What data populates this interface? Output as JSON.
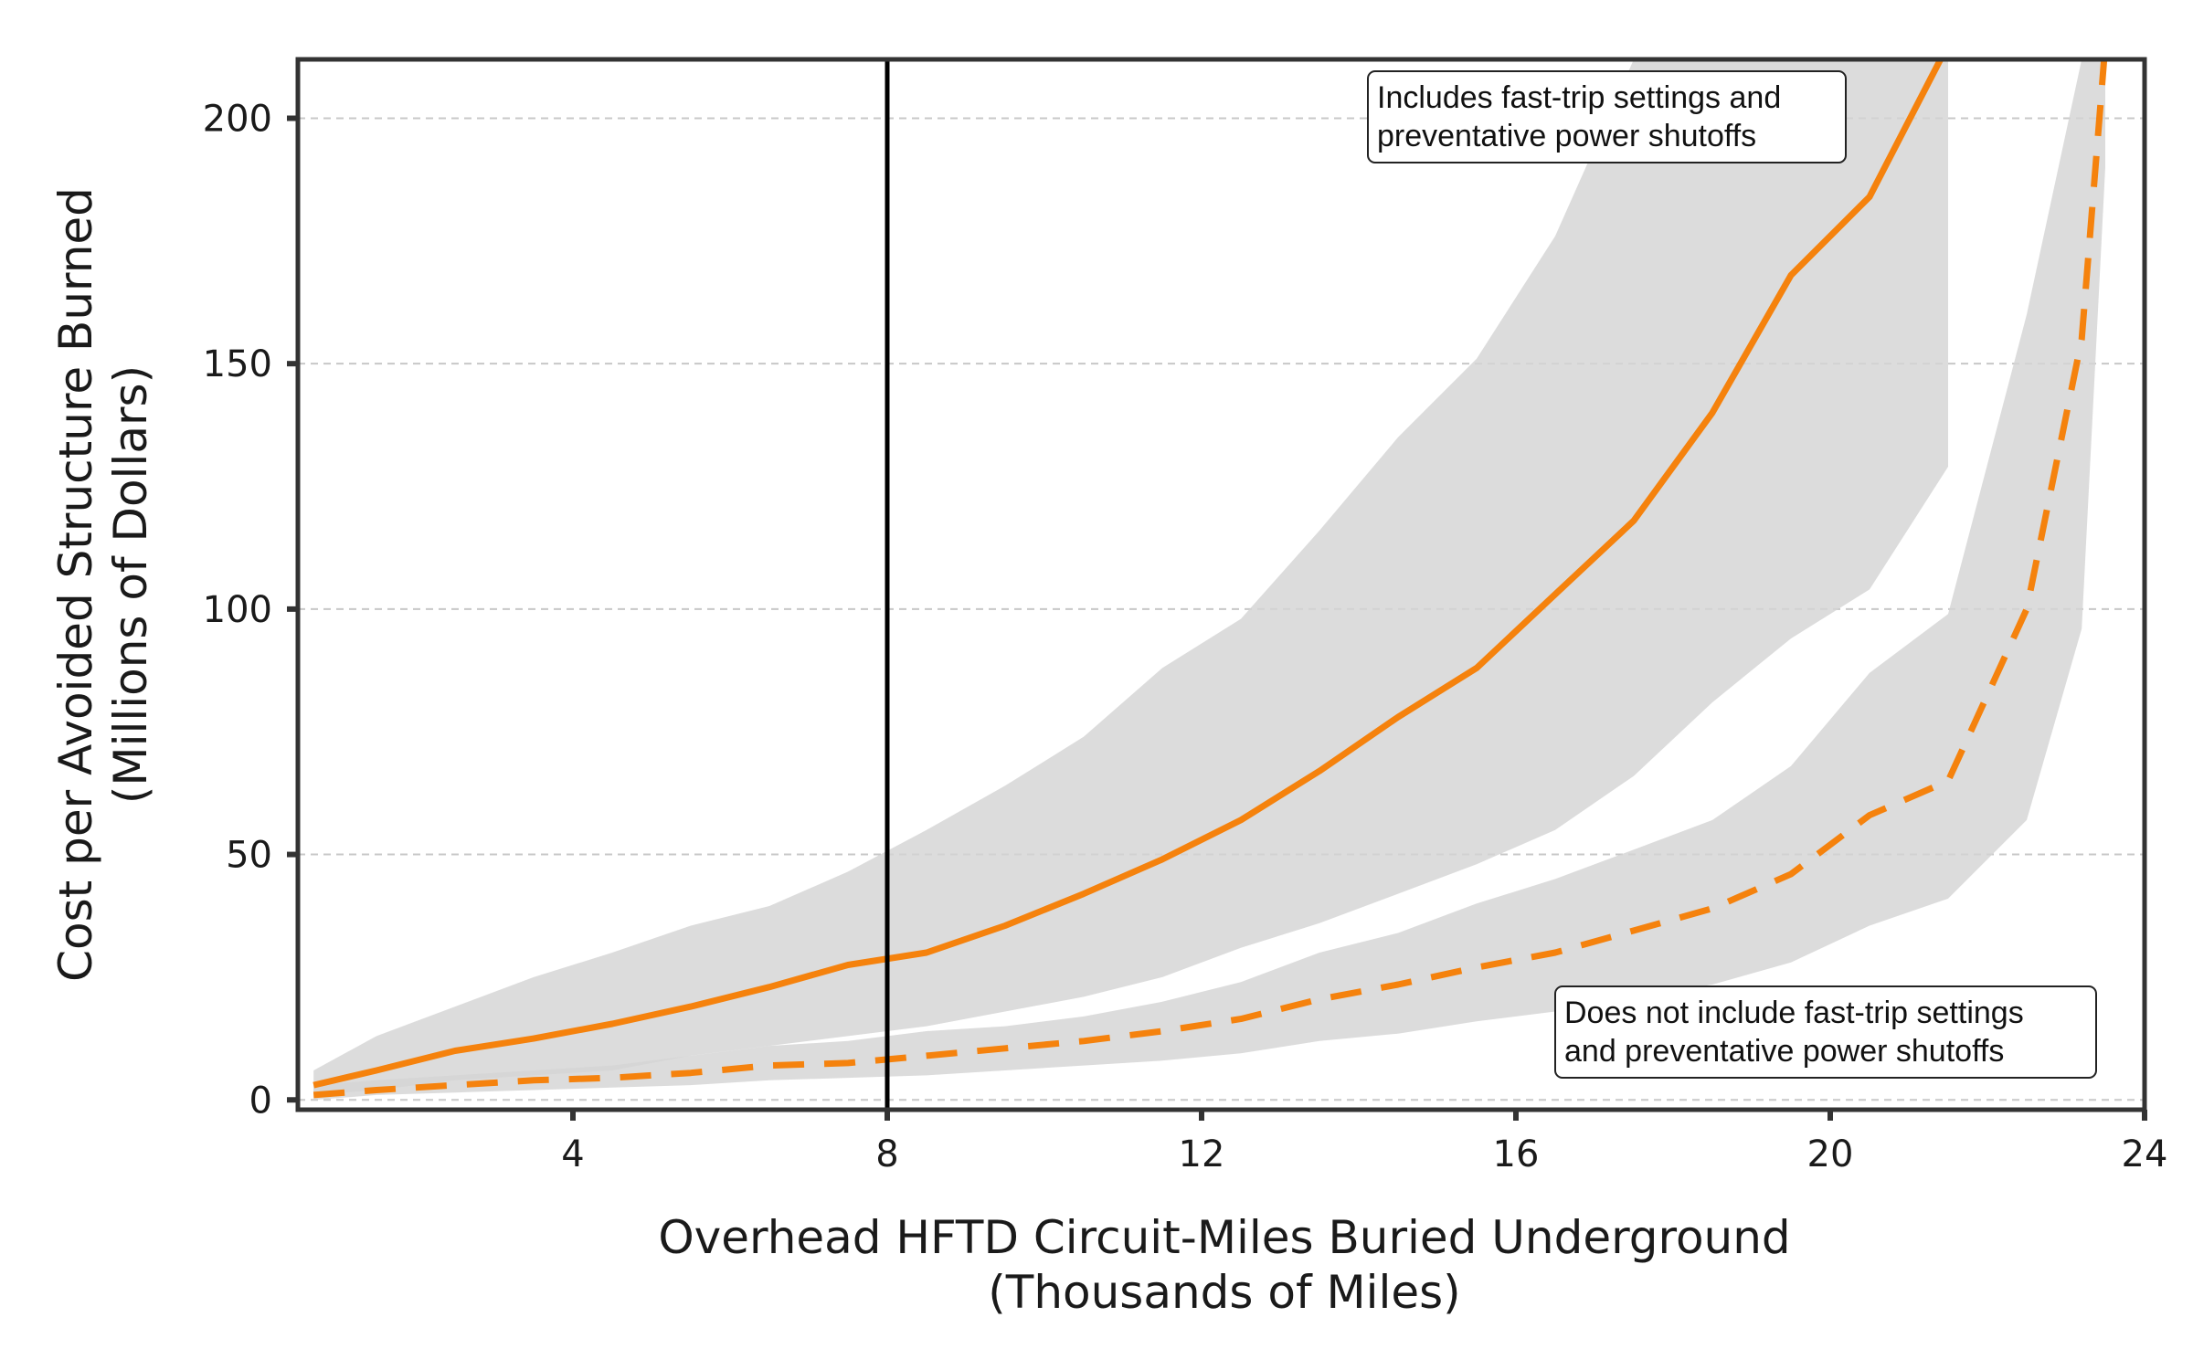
{
  "chart_data": {
    "type": "line",
    "title": "",
    "xlabel": [
      "Overhead HFTD Circuit-Miles Buried Underground",
      "(Thousands of Miles)"
    ],
    "ylabel": [
      "Cost per Avoided Structure Burned",
      "(Millions of Dollars)"
    ],
    "xlim": [
      0.5,
      24
    ],
    "ylim": [
      -2,
      212
    ],
    "xticks": [
      4,
      8,
      12,
      16,
      20,
      24
    ],
    "yticks": [
      0,
      50,
      100,
      150,
      200
    ],
    "grid": "y-dashed",
    "vertical_line_x": 8,
    "colors": {
      "series": "#f5820d",
      "band": "#d4d4d4",
      "band_overlap": "#b8b8b8",
      "axis": "#333333",
      "vline": "#000000"
    },
    "series": [
      {
        "style": "solid",
        "x": [
          0.7,
          1.5,
          2.5,
          3.5,
          4.5,
          5.5,
          6.5,
          7.5,
          8.5,
          9.5,
          10.5,
          11.5,
          12.5,
          13.5,
          14.5,
          15.5,
          16.5,
          17.5,
          18.5,
          19.5,
          20.5,
          21.5
        ],
        "y": [
          3,
          6,
          10,
          12.5,
          15.5,
          19,
          23,
          27.5,
          30,
          35.5,
          42,
          49,
          57,
          67,
          78,
          88,
          103,
          118,
          140,
          168,
          184,
          215
        ],
        "band_upper": [
          6,
          13,
          19,
          25,
          30,
          35.5,
          39.5,
          46.5,
          55,
          64,
          74,
          88,
          98,
          116,
          135,
          151,
          176,
          212,
          212,
          212,
          212,
          212
        ],
        "band_lower": [
          1,
          2,
          4,
          5,
          6,
          9,
          11,
          13,
          15,
          18,
          21,
          25,
          31,
          36,
          42,
          48,
          55,
          66,
          81,
          94,
          104,
          129
        ]
      },
      {
        "style": "dashed",
        "x": [
          0.7,
          1.5,
          2.5,
          3.5,
          4.5,
          5.5,
          6.5,
          7.5,
          8.5,
          9.5,
          10.5,
          11.5,
          12.5,
          13.5,
          14.5,
          15.5,
          16.5,
          17.5,
          18.5,
          19.5,
          20.5,
          21.5,
          22.5,
          23.2,
          23.5
        ],
        "y": [
          1,
          2,
          3,
          4,
          4.5,
          5.5,
          7,
          7.5,
          9,
          10.5,
          12,
          14,
          16.5,
          20.5,
          23.5,
          27,
          30,
          34.5,
          39,
          46,
          58,
          65,
          100,
          155,
          215
        ],
        "band_upper": [
          3,
          4,
          5,
          6,
          7,
          9,
          11,
          12,
          14,
          15,
          17,
          20,
          24,
          30,
          34,
          40,
          45,
          51,
          57,
          68,
          87,
          99,
          160,
          212,
          212
        ],
        "band_lower": [
          0,
          1,
          1.5,
          2,
          2.5,
          3,
          4,
          4.5,
          5,
          6,
          7,
          8,
          9.5,
          12,
          13.5,
          16,
          18,
          21,
          23.5,
          28,
          35.5,
          41,
          57,
          96,
          190
        ]
      }
    ],
    "annotations": [
      {
        "lines": [
          "Includes fast-trip settings and",
          "preventative power shutoffs"
        ]
      },
      {
        "lines": [
          "Does not include fast-trip settings",
          "and preventative power shutoffs"
        ]
      }
    ]
  }
}
